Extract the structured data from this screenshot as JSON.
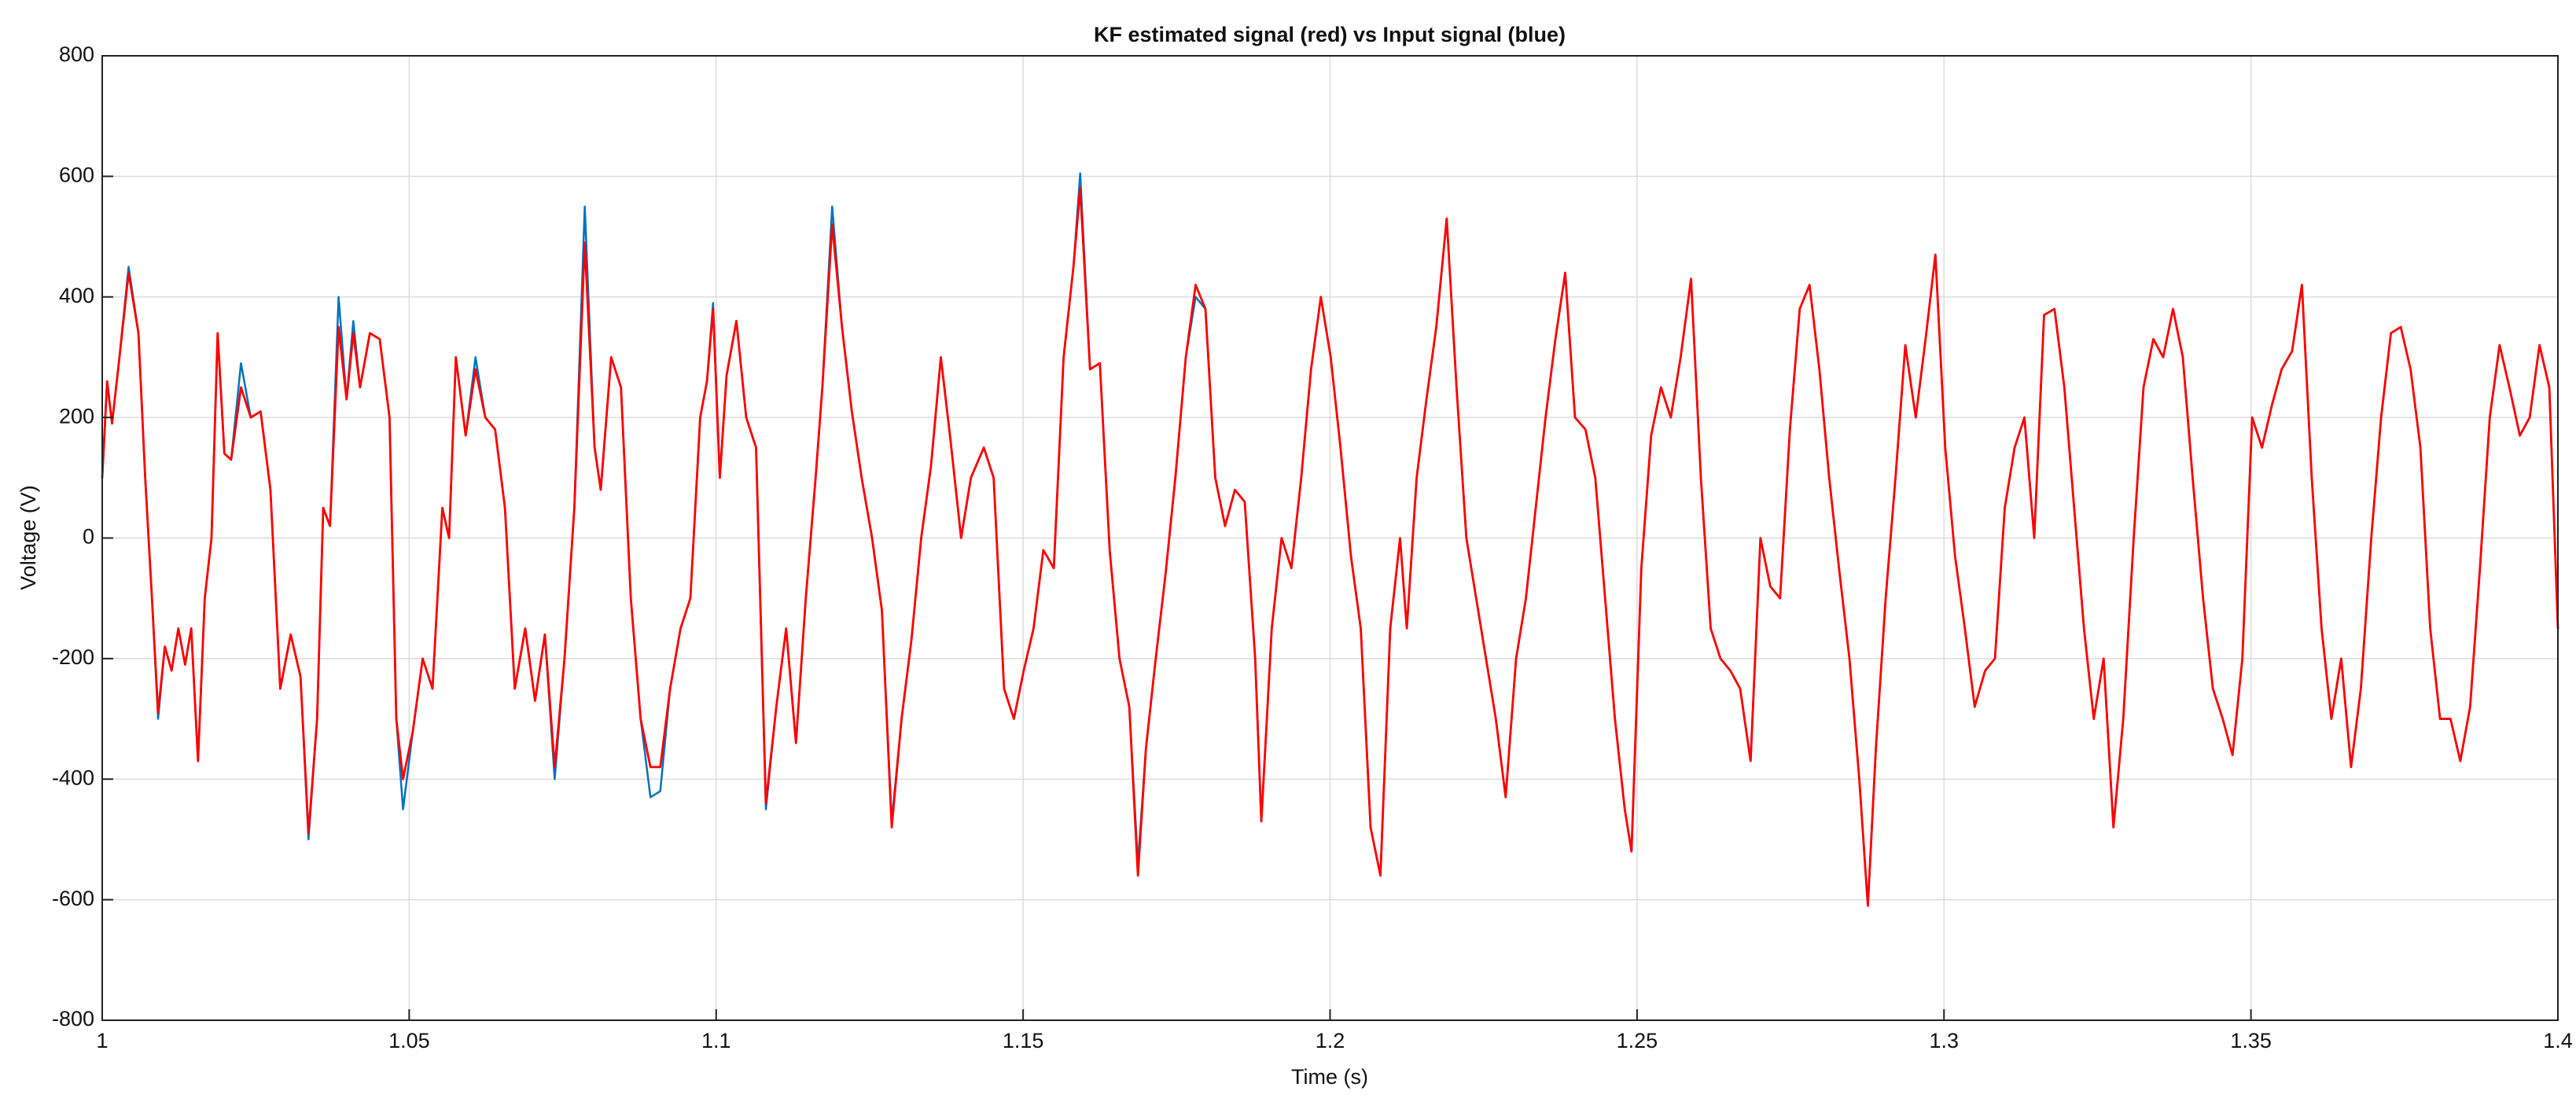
{
  "chart_data": {
    "type": "line",
    "title": "KF estimated signal (red) vs Input signal (blue)",
    "xlabel": "Time (s)",
    "ylabel": "Voltage (V)",
    "xlim": [
      1,
      1.4
    ],
    "ylim": [
      -800,
      800
    ],
    "xticks": [
      1,
      1.05,
      1.1,
      1.15,
      1.2,
      1.25,
      1.3,
      1.35,
      1.4
    ],
    "yticks": [
      -800,
      -600,
      -400,
      -200,
      0,
      200,
      400,
      600,
      800
    ],
    "grid": true,
    "x": [
      1.0,
      1.0008,
      1.0016,
      1.0027,
      1.0043,
      1.0059,
      1.007,
      1.0081,
      1.0091,
      1.0102,
      1.0113,
      1.0124,
      1.0135,
      1.0145,
      1.0156,
      1.0167,
      1.0178,
      1.0188,
      1.0199,
      1.021,
      1.0226,
      1.0242,
      1.0258,
      1.0274,
      1.029,
      1.0307,
      1.0323,
      1.0336,
      1.035,
      1.036,
      1.0371,
      1.0385,
      1.0398,
      1.0409,
      1.042,
      1.0436,
      1.0452,
      1.0468,
      1.0479,
      1.049,
      1.0506,
      1.0522,
      1.0538,
      1.0554,
      1.0565,
      1.0576,
      1.0592,
      1.0608,
      1.0624,
      1.064,
      1.0656,
      1.0672,
      1.0689,
      1.0705,
      1.0721,
      1.0737,
      1.0753,
      1.0769,
      1.0786,
      1.0802,
      1.0812,
      1.0829,
      1.0845,
      1.0861,
      1.0877,
      1.0893,
      1.0909,
      1.0925,
      1.0942,
      1.0958,
      1.0974,
      1.0985,
      1.0995,
      1.1006,
      1.1017,
      1.1033,
      1.1049,
      1.1065,
      1.1081,
      1.1098,
      1.1114,
      1.113,
      1.1146,
      1.1162,
      1.1173,
      1.1189,
      1.1205,
      1.1221,
      1.1237,
      1.1254,
      1.127,
      1.1286,
      1.1302,
      1.1318,
      1.1334,
      1.135,
      1.1366,
      1.1382,
      1.1399,
      1.1415,
      1.1436,
      1.1452,
      1.1469,
      1.1485,
      1.1501,
      1.1517,
      1.1533,
      1.155,
      1.1566,
      1.1582,
      1.1593,
      1.1609,
      1.1625,
      1.1641,
      1.1657,
      1.1673,
      1.1687,
      1.17,
      1.1716,
      1.1732,
      1.1748,
      1.1765,
      1.1781,
      1.1797,
      1.1813,
      1.1829,
      1.1845,
      1.1861,
      1.1878,
      1.1888,
      1.1905,
      1.1921,
      1.1937,
      1.1953,
      1.1969,
      1.1985,
      1.2001,
      1.2017,
      1.2034,
      1.205,
      1.2066,
      1.2082,
      1.2098,
      1.2114,
      1.2125,
      1.2141,
      1.2157,
      1.2173,
      1.219,
      1.2206,
      1.2222,
      1.2238,
      1.2254,
      1.227,
      1.2286,
      1.2303,
      1.2319,
      1.2335,
      1.2351,
      1.2367,
      1.2383,
      1.2399,
      1.2416,
      1.2432,
      1.2448,
      1.2464,
      1.248,
      1.2491,
      1.2507,
      1.2523,
      1.2539,
      1.2555,
      1.2571,
      1.2588,
      1.2604,
      1.262,
      1.2636,
      1.2652,
      1.2668,
      1.2685,
      1.2701,
      1.2717,
      1.2733,
      1.2749,
      1.2765,
      1.2781,
      1.2797,
      1.2813,
      1.2829,
      1.2846,
      1.2862,
      1.2876,
      1.2889,
      1.2905,
      1.2921,
      1.2937,
      1.2954,
      1.297,
      1.2986,
      1.3002,
      1.3018,
      1.3034,
      1.305,
      1.3067,
      1.3083,
      1.3099,
      1.3115,
      1.3131,
      1.3147,
      1.3163,
      1.318,
      1.3196,
      1.3212,
      1.3228,
      1.3244,
      1.326,
      1.3276,
      1.3292,
      1.3309,
      1.3325,
      1.3341,
      1.3357,
      1.3373,
      1.3389,
      1.3405,
      1.3422,
      1.3438,
      1.3454,
      1.347,
      1.3486,
      1.3502,
      1.3518,
      1.3534,
      1.355,
      1.3567,
      1.3583,
      1.3599,
      1.3615,
      1.3631,
      1.3647,
      1.3663,
      1.3679,
      1.3696,
      1.3712,
      1.3728,
      1.3744,
      1.376,
      1.3776,
      1.3792,
      1.3808,
      1.3825,
      1.3841,
      1.3857,
      1.3873,
      1.3889,
      1.3905,
      1.3921,
      1.3938,
      1.3954,
      1.397,
      1.3986,
      1.4
    ],
    "series": [
      {
        "color": "#0072bd",
        "width": 2.5,
        "values": [
          100,
          260,
          190,
          290,
          450,
          340,
          100,
          -100,
          -300,
          -180,
          -220,
          -150,
          -210,
          -150,
          -370,
          -100,
          0,
          340,
          140,
          130,
          290,
          200,
          210,
          80,
          -250,
          -160,
          -230,
          -500,
          -300,
          50,
          20,
          400,
          230,
          360,
          250,
          340,
          330,
          200,
          -300,
          -450,
          -320,
          -200,
          -250,
          50,
          0,
          300,
          170,
          300,
          200,
          180,
          50,
          -250,
          -150,
          -270,
          -160,
          -400,
          -200,
          50,
          550,
          150,
          80,
          300,
          250,
          -100,
          -300,
          -430,
          -420,
          -250,
          -150,
          -100,
          200,
          260,
          390,
          100,
          270,
          360,
          200,
          150,
          -450,
          -280,
          -150,
          -340,
          -100,
          100,
          250,
          550,
          350,
          210,
          100,
          0,
          -120,
          -470,
          -300,
          -170,
          0,
          120,
          300,
          160,
          0,
          100,
          150,
          100,
          -250,
          -300,
          -220,
          -150,
          -20,
          -50,
          300,
          450,
          605,
          280,
          290,
          -20,
          -200,
          -280,
          -540,
          -350,
          -200,
          -60,
          100,
          300,
          400,
          380,
          100,
          20,
          80,
          60,
          -200,
          -470,
          -150,
          0,
          -50,
          100,
          280,
          400,
          300,
          150,
          -30,
          -150,
          -480,
          -560,
          -150,
          0,
          -150,
          100,
          230,
          350,
          530,
          250,
          0,
          -100,
          -200,
          -300,
          -430,
          -200,
          -100,
          50,
          200,
          330,
          440,
          200,
          180,
          100,
          -100,
          -300,
          -450,
          -520,
          -50,
          170,
          250,
          200,
          300,
          430,
          100,
          -150,
          -200,
          -220,
          -250,
          -370,
          0,
          -80,
          -100,
          180,
          380,
          420,
          280,
          100,
          -50,
          -200,
          -400,
          -610,
          -350,
          -100,
          100,
          320,
          200,
          330,
          470,
          150,
          -30,
          -150,
          -280,
          -220,
          -200,
          50,
          150,
          200,
          0,
          370,
          380,
          250,
          50,
          -150,
          -300,
          -200,
          -480,
          -300,
          0,
          250,
          330,
          300,
          380,
          300,
          100,
          -100,
          -250,
          -300,
          -360,
          -200,
          200,
          150,
          220,
          280,
          310,
          420,
          100,
          -150,
          -300,
          -200,
          -380,
          -250,
          0,
          200,
          340,
          350,
          280,
          150,
          -150,
          -300,
          -300,
          -370,
          -280,
          -50,
          200,
          320,
          250,
          170,
          200,
          320,
          250,
          -150
        ]
      },
      {
        "color": "#ff0000",
        "width": 2.8,
        "values": [
          100,
          260,
          190,
          290,
          440,
          340,
          100,
          -100,
          -290,
          -180,
          -220,
          -150,
          -210,
          -150,
          -370,
          -100,
          0,
          340,
          140,
          130,
          250,
          200,
          210,
          80,
          -250,
          -160,
          -230,
          -490,
          -300,
          50,
          20,
          350,
          230,
          340,
          250,
          340,
          330,
          200,
          -300,
          -400,
          -320,
          -200,
          -250,
          50,
          0,
          300,
          170,
          280,
          200,
          180,
          50,
          -250,
          -150,
          -270,
          -160,
          -380,
          -200,
          50,
          490,
          150,
          80,
          300,
          250,
          -100,
          -300,
          -380,
          -380,
          -250,
          -150,
          -100,
          200,
          260,
          380,
          100,
          270,
          360,
          200,
          150,
          -440,
          -280,
          -150,
          -340,
          -100,
          100,
          250,
          520,
          350,
          210,
          100,
          0,
          -120,
          -480,
          -300,
          -170,
          0,
          120,
          300,
          160,
          0,
          100,
          150,
          100,
          -250,
          -300,
          -220,
          -150,
          -20,
          -50,
          300,
          450,
          580,
          280,
          290,
          -20,
          -200,
          -280,
          -560,
          -350,
          -200,
          -60,
          100,
          300,
          420,
          380,
          100,
          20,
          80,
          60,
          -200,
          -470,
          -150,
          0,
          -50,
          100,
          280,
          400,
          300,
          150,
          -30,
          -150,
          -480,
          -560,
          -150,
          0,
          -150,
          100,
          230,
          350,
          530,
          250,
          0,
          -100,
          -200,
          -300,
          -430,
          -200,
          -100,
          50,
          200,
          330,
          440,
          200,
          180,
          100,
          -100,
          -300,
          -450,
          -520,
          -50,
          170,
          250,
          200,
          300,
          430,
          100,
          -150,
          -200,
          -220,
          -250,
          -370,
          0,
          -80,
          -100,
          180,
          380,
          420,
          280,
          100,
          -50,
          -200,
          -400,
          -610,
          -350,
          -100,
          100,
          320,
          200,
          330,
          470,
          150,
          -30,
          -150,
          -280,
          -220,
          -200,
          50,
          150,
          200,
          0,
          370,
          380,
          250,
          50,
          -150,
          -300,
          -200,
          -480,
          -300,
          0,
          250,
          330,
          300,
          380,
          300,
          100,
          -100,
          -250,
          -300,
          -360,
          -200,
          200,
          150,
          220,
          280,
          310,
          420,
          100,
          -150,
          -300,
          -200,
          -380,
          -250,
          0,
          200,
          340,
          350,
          280,
          150,
          -150,
          -300,
          -300,
          -370,
          -280,
          -50,
          200,
          320,
          250,
          170,
          200,
          320,
          250,
          -150
        ]
      }
    ]
  }
}
